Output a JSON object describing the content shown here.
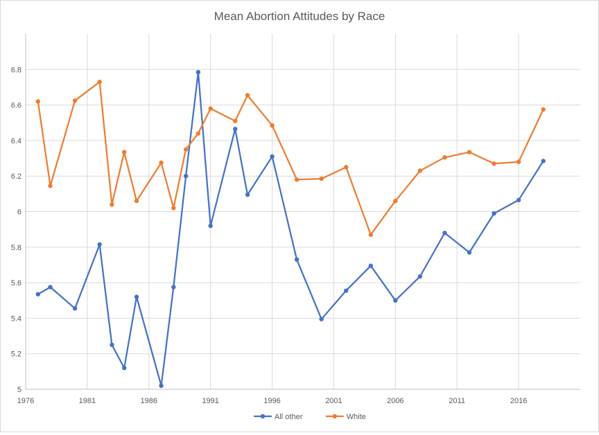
{
  "chart_data": {
    "type": "line",
    "title": "Mean Abortion Attitudes by Race",
    "xlabel": "",
    "ylabel": "",
    "xlim": [
      1976,
      2021
    ],
    "ylim": [
      5,
      7
    ],
    "x_ticks": [
      1976,
      1981,
      1986,
      1991,
      1996,
      2001,
      2006,
      2011,
      2016
    ],
    "y_ticks": [
      5,
      5.2,
      5.4,
      5.6,
      5.8,
      6,
      6.2,
      6.4,
      6.6,
      6.8
    ],
    "y_tick_labels": [
      "5",
      "5.2",
      "5.4",
      "5.6",
      "5.8",
      "6",
      "6.2",
      "6.4",
      "6.6",
      "6.8"
    ],
    "grid": true,
    "legend_position": "bottom",
    "series": [
      {
        "name": "All other",
        "color": "#4472c4",
        "x": [
          1977,
          1978,
          1980,
          1982,
          1983,
          1984,
          1985,
          1987,
          1988,
          1989,
          1990,
          1991,
          1993,
          1994,
          1996,
          1998,
          2000,
          2002,
          2004,
          2006,
          2008,
          2010,
          2012,
          2014,
          2016,
          2018
        ],
        "values": [
          5.535,
          5.575,
          5.455,
          5.815,
          5.25,
          5.12,
          5.52,
          5.02,
          5.575,
          6.2,
          6.785,
          5.92,
          6.465,
          6.095,
          6.31,
          5.73,
          5.395,
          5.555,
          5.695,
          5.5,
          5.635,
          5.88,
          5.77,
          5.99,
          6.065,
          6.285
        ]
      },
      {
        "name": "White",
        "color": "#ed7d31",
        "x": [
          1977,
          1978,
          1980,
          1982,
          1983,
          1984,
          1985,
          1987,
          1988,
          1989,
          1990,
          1991,
          1993,
          1994,
          1996,
          1998,
          2000,
          2002,
          2004,
          2006,
          2008,
          2010,
          2012,
          2014,
          2016,
          2018
        ],
        "values": [
          6.62,
          6.145,
          6.625,
          6.73,
          6.04,
          6.335,
          6.06,
          6.275,
          6.02,
          6.35,
          6.44,
          6.58,
          6.51,
          6.655,
          6.485,
          6.18,
          6.185,
          6.25,
          5.87,
          6.06,
          6.23,
          6.305,
          6.335,
          6.27,
          6.28,
          6.575
        ]
      }
    ]
  }
}
